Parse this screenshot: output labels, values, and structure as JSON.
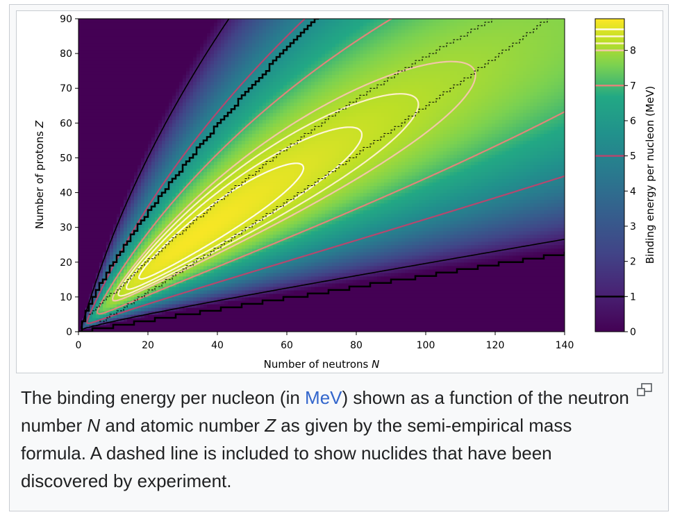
{
  "chart_data": {
    "type": "heatmap",
    "xlabel": "Number of neutrons N",
    "ylabel": "Number of protons Z",
    "colorbar_label": "Binding energy per nucleon (MeV)",
    "xlim": [
      0,
      140
    ],
    "ylim": [
      0,
      90
    ],
    "x_ticks": [
      0,
      20,
      40,
      60,
      80,
      100,
      120,
      140
    ],
    "y_ticks": [
      0,
      10,
      20,
      30,
      40,
      50,
      60,
      70,
      80,
      90
    ],
    "colorbar_range": [
      0,
      8.9
    ],
    "colorbar_ticks": [
      0,
      1,
      2,
      3,
      4,
      5,
      6,
      7,
      8
    ],
    "colormap": "viridis",
    "contour_levels": [
      1,
      5,
      7,
      8,
      8.2,
      8.4,
      8.6
    ],
    "contour_colors": [
      "#000000",
      "#b5476f",
      "#e0857a",
      "#f2c6a8",
      "#fdf0c8",
      "#fff6d8",
      "#fffbe8"
    ],
    "dashed_line": "discovered nuclides"
  },
  "caption": {
    "part1": "The binding energy per nucleon (in ",
    "link": "MeV",
    "part2": ") shown as a function of the neutron number ",
    "N": "N",
    "part3": " and atomic number ",
    "Z": "Z",
    "part4": " as given by the semi-empirical mass formula. A dashed line is included to show nuclides that have been discovered by experiment."
  },
  "icons": {
    "magnify": "magnify-icon"
  }
}
